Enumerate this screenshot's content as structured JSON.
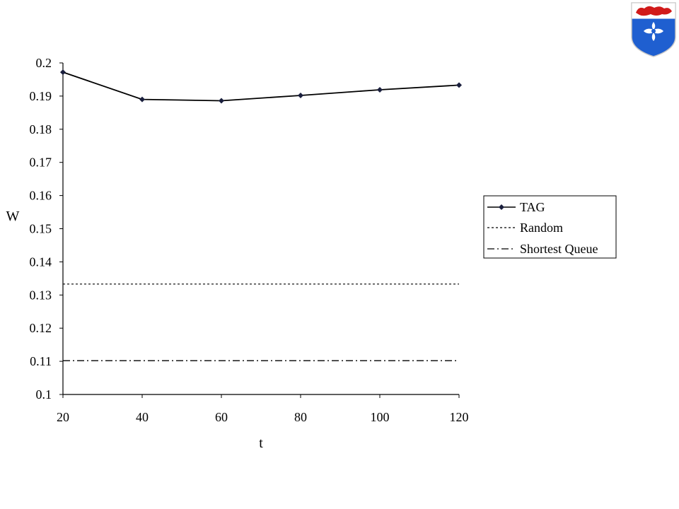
{
  "chart_data": {
    "type": "line",
    "xlabel": "t",
    "ylabel": "W",
    "x": [
      20,
      40,
      60,
      80,
      100,
      120
    ],
    "xlim": [
      20,
      120
    ],
    "xticks": [
      "20",
      "40",
      "60",
      "80",
      "100",
      "120"
    ],
    "ylim": [
      0.1,
      0.2
    ],
    "yticks": [
      "0.1",
      "0.11",
      "0.12",
      "0.13",
      "0.14",
      "0.15",
      "0.16",
      "0.17",
      "0.18",
      "0.19",
      "0.2"
    ],
    "grid": false,
    "legend_position": "right",
    "series": [
      {
        "name": "TAG",
        "style": "solid-markers",
        "values": [
          0.1972,
          0.189,
          0.1886,
          0.1902,
          0.1919,
          0.1933
        ]
      },
      {
        "name": "Random",
        "style": "dotted",
        "values": [
          0.1333,
          0.1333,
          0.1333,
          0.1333,
          0.1333,
          0.1333
        ]
      },
      {
        "name": "Shortest Queue",
        "style": "dash-dot",
        "values": [
          0.1102,
          0.1102,
          0.1102,
          0.1102,
          0.1102,
          0.1102
        ]
      }
    ],
    "colors": {
      "line": "#000000",
      "marker": "#1a1f3d"
    }
  },
  "logo": {
    "name": "university-crest",
    "colors": {
      "shield": "#1f5fd0",
      "top_band": "#ffffff",
      "lion": "#d11a1a",
      "cross": "#ffffff"
    }
  }
}
